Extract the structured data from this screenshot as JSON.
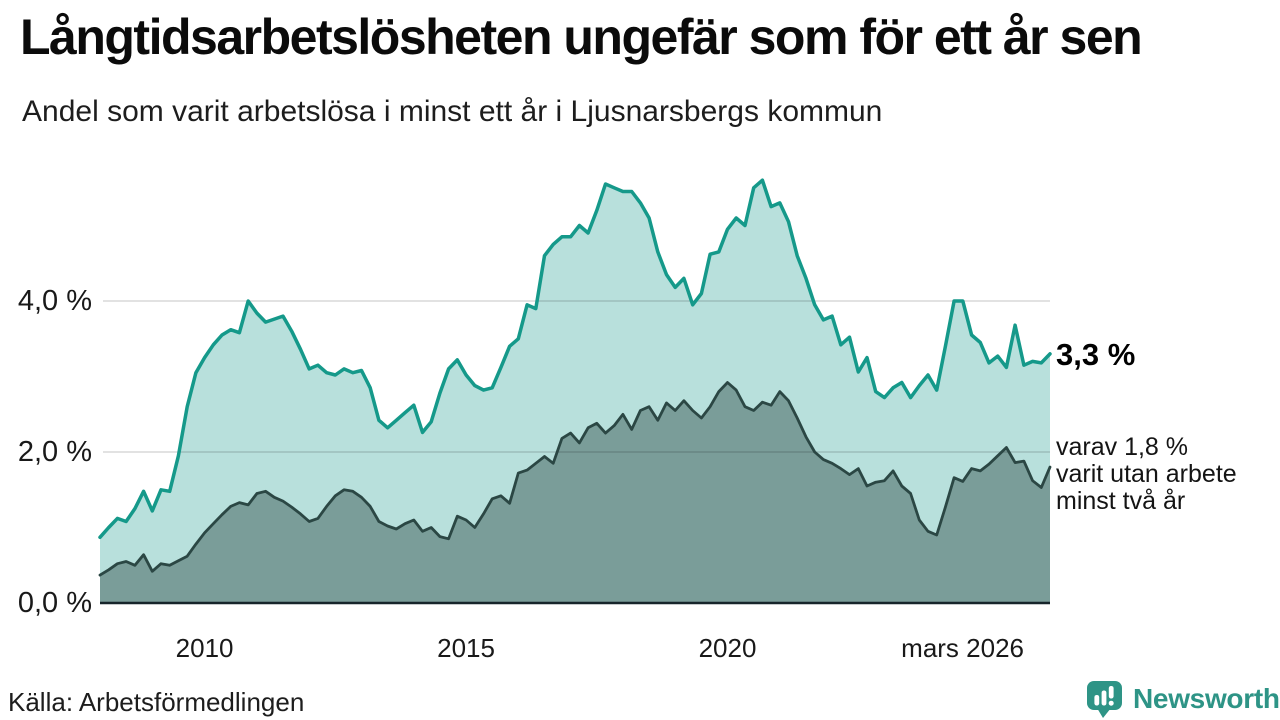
{
  "header": {
    "title": "Långtidsarbetslösheten ungefär som för ett år sen",
    "subtitle": "Andel som varit arbetslösa i minst ett år i Ljusnarsbergs kommun"
  },
  "annotations": {
    "total_value": "3,3 %",
    "subset_lines": [
      "varav 1,8 %",
      "varit utan arbete",
      "minst två år"
    ]
  },
  "source": {
    "label": "Källa: Arbetsförmedlingen"
  },
  "branding": {
    "name": "Newsworthy",
    "color": "#2e9486",
    "icon": "newsworthy-pin-barchart-icon"
  },
  "colors": {
    "total_line": "#15998a",
    "total_fill": "rgba(21,153,138,0.30)",
    "subset_line": "#2b4744",
    "subset_fill": "rgba(43,71,68,0.44)",
    "gridline": "rgba(0,0,0,0.15)",
    "baseline": "#17252b",
    "text": "#191919"
  },
  "chart_data": {
    "type": "area",
    "title": "Långtidsarbetslösheten ungefär som för ett år sen",
    "subtitle": "Andel som varit arbetslösa i minst ett år i Ljusnarsbergs kommun",
    "unit": "percent",
    "x_start": "2008-01",
    "x_end": "2026-03",
    "step_months": 2,
    "ylim": [
      0,
      5.8
    ],
    "grid": "horizontal",
    "legend": "none",
    "y_ticks": [
      {
        "value": 4.0,
        "label": "4,0 %"
      },
      {
        "value": 2.0,
        "label": "2,0 %"
      },
      {
        "value": 0.0,
        "label": "0,0 %"
      }
    ],
    "x_ticks": [
      {
        "index": 12,
        "label": "2010"
      },
      {
        "index": 42,
        "label": "2015"
      },
      {
        "index": 72,
        "label": "2020"
      },
      {
        "index": 109,
        "label": "mars 2026",
        "anchor": "end",
        "dx": -26
      }
    ],
    "end_labels": {
      "total": "3,3 %",
      "subset": "varav 1,8 % varit utan arbete minst två år"
    },
    "series": [
      {
        "name": "Andel arbetslösa minst ett år",
        "end_value": 3.3,
        "values": [
          0.87,
          1.0,
          1.12,
          1.08,
          1.25,
          1.48,
          1.22,
          1.5,
          1.48,
          1.95,
          2.6,
          3.05,
          3.25,
          3.42,
          3.55,
          3.62,
          3.58,
          4.0,
          3.84,
          3.72,
          3.76,
          3.8,
          3.6,
          3.36,
          3.1,
          3.15,
          3.05,
          3.02,
          3.1,
          3.05,
          3.08,
          2.85,
          2.42,
          2.32,
          2.42,
          2.52,
          2.62,
          2.26,
          2.4,
          2.78,
          3.1,
          3.22,
          3.02,
          2.88,
          2.82,
          2.85,
          3.12,
          3.4,
          3.5,
          3.95,
          3.9,
          4.6,
          4.75,
          4.85,
          4.85,
          5.0,
          4.9,
          5.2,
          5.55,
          5.5,
          5.45,
          5.45,
          5.3,
          5.1,
          4.65,
          4.35,
          4.18,
          4.3,
          3.95,
          4.1,
          4.62,
          4.65,
          4.95,
          5.1,
          5.0,
          5.5,
          5.6,
          5.25,
          5.3,
          5.05,
          4.6,
          4.3,
          3.95,
          3.75,
          3.8,
          3.42,
          3.52,
          3.06,
          3.25,
          2.8,
          2.72,
          2.85,
          2.92,
          2.72,
          2.88,
          3.02,
          2.82,
          3.4,
          4.0,
          4.0,
          3.55,
          3.45,
          3.18,
          3.27,
          3.12,
          3.68,
          3.15,
          3.2,
          3.18,
          3.3
        ]
      },
      {
        "name": "varav utan arbete minst två år",
        "end_value": 1.8,
        "values": [
          0.37,
          0.44,
          0.52,
          0.55,
          0.5,
          0.64,
          0.42,
          0.52,
          0.5,
          0.56,
          0.62,
          0.78,
          0.93,
          1.05,
          1.17,
          1.28,
          1.33,
          1.3,
          1.45,
          1.48,
          1.4,
          1.35,
          1.27,
          1.18,
          1.08,
          1.12,
          1.28,
          1.42,
          1.5,
          1.48,
          1.4,
          1.28,
          1.08,
          1.02,
          0.98,
          1.05,
          1.1,
          0.95,
          1.0,
          0.88,
          0.85,
          1.15,
          1.1,
          1.0,
          1.18,
          1.38,
          1.42,
          1.32,
          1.72,
          1.76,
          1.85,
          1.94,
          1.85,
          2.18,
          2.25,
          2.12,
          2.32,
          2.38,
          2.25,
          2.35,
          2.5,
          2.3,
          2.55,
          2.6,
          2.42,
          2.65,
          2.55,
          2.68,
          2.55,
          2.45,
          2.6,
          2.8,
          2.92,
          2.82,
          2.6,
          2.55,
          2.66,
          2.62,
          2.8,
          2.68,
          2.45,
          2.2,
          2.0,
          1.9,
          1.85,
          1.78,
          1.7,
          1.78,
          1.55,
          1.6,
          1.62,
          1.75,
          1.55,
          1.45,
          1.1,
          0.95,
          0.9,
          1.27,
          1.66,
          1.61,
          1.78,
          1.75,
          1.84,
          1.95,
          2.06,
          1.86,
          1.88,
          1.62,
          1.53,
          1.8
        ]
      }
    ]
  }
}
